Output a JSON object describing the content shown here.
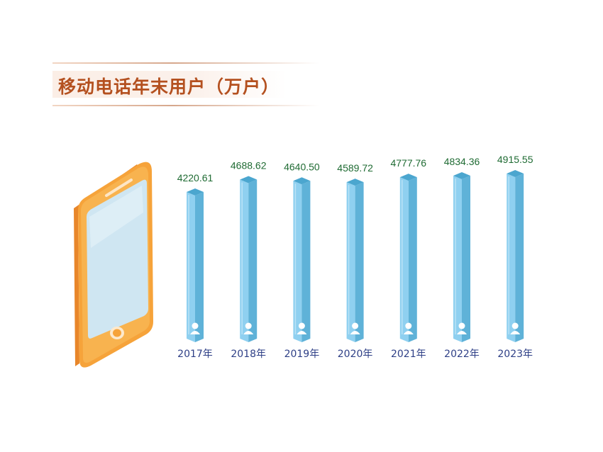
{
  "title": "移动电话年末用户（万户）",
  "colors": {
    "title": "#b4501f",
    "bar_front": "#8fd0f0",
    "bar_side": "#5fb2d8",
    "bar_top": "#4ba6cf",
    "value_text": "#1f6b33",
    "year_text": "#2e3f86",
    "phone_body": "#f6a33a",
    "phone_screen": "#cfe6f2"
  },
  "icons": [
    "mobile-phone-icon",
    "user-avatar-icon"
  ],
  "chart_data": {
    "type": "bar",
    "title": "移动电话年末用户（万户）",
    "categories": [
      "2017年",
      "2018年",
      "2019年",
      "2020年",
      "2021年",
      "2022年",
      "2023年"
    ],
    "values": [
      4220.61,
      4688.62,
      4640.5,
      4589.72,
      4777.76,
      4834.36,
      4915.55
    ],
    "value_labels": [
      "4220.61",
      "4688.62",
      "4640.50",
      "4589.72",
      "4777.76",
      "4834.36",
      "4915.55"
    ],
    "xlabel": "",
    "ylabel": "",
    "grid": false,
    "legend": "none"
  }
}
